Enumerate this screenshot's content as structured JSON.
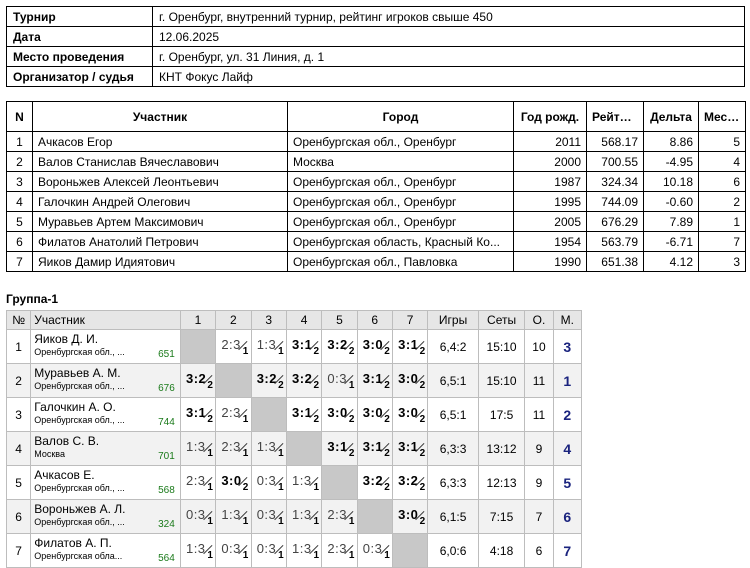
{
  "info": [
    {
      "key": "Турнир",
      "value": "г. Оренбург, внутренний турнир, рейтинг игроков свыше 450"
    },
    {
      "key": "Дата",
      "value": "12.06.2025"
    },
    {
      "key": "Место проведения",
      "value": "г. Оренбург, ул. 31 Линия, д. 1"
    },
    {
      "key": "Организатор / судья",
      "value": "КНТ Фокус Лайф"
    }
  ],
  "players_table": {
    "headers": [
      "N",
      "Участник",
      "Город",
      "Год рожд.",
      "Рейтинг",
      "Дельта",
      "Место"
    ],
    "rows": [
      {
        "n": "1",
        "name": "Ачкасов Егор",
        "city": "Оренбургская обл., Оренбург",
        "year": "2011",
        "rating": "568.17",
        "delta": "8.86",
        "place": "5"
      },
      {
        "n": "2",
        "name": "Валов Станислав Вячеславович",
        "city": "Москва",
        "year": "2000",
        "rating": "700.55",
        "delta": "-4.95",
        "place": "4"
      },
      {
        "n": "3",
        "name": "Вороньжев Алексей Леонтьевич",
        "city": "Оренбургская обл., Оренбург",
        "year": "1987",
        "rating": "324.34",
        "delta": "10.18",
        "place": "6"
      },
      {
        "n": "4",
        "name": "Галочкин Андрей Олегович",
        "city": "Оренбургская обл., Оренбург",
        "year": "1995",
        "rating": "744.09",
        "delta": "-0.60",
        "place": "2"
      },
      {
        "n": "5",
        "name": "Муравьев Артем Максимович",
        "city": "Оренбургская обл., Оренбург",
        "year": "2005",
        "rating": "676.29",
        "delta": "7.89",
        "place": "1"
      },
      {
        "n": "6",
        "name": "Филатов Анатолий Петрович",
        "city": "Оренбургская область, Красный Ко...",
        "year": "1954",
        "rating": "563.79",
        "delta": "-6.71",
        "place": "7"
      },
      {
        "n": "7",
        "name": "Яиков Дамир Идиятович",
        "city": "Оренбургская обл., Павловка",
        "year": "1990",
        "rating": "651.38",
        "delta": "4.12",
        "place": "3"
      }
    ]
  },
  "group": {
    "title": "Группа-1",
    "headers": {
      "n": "№",
      "name": "Участник",
      "cols": [
        "1",
        "2",
        "3",
        "4",
        "5",
        "6",
        "7"
      ],
      "games": "Игры",
      "sets": "Сеты",
      "points": "О.",
      "place": "М."
    },
    "rows": [
      {
        "n": "1",
        "name": "Яиков Д. И.",
        "city": "Оренбургская обл., ...",
        "rating": "651",
        "results": [
          null,
          {
            "s": "2:3",
            "r": "1"
          },
          {
            "s": "1:3",
            "r": "1"
          },
          {
            "s": "3:1",
            "r": "2"
          },
          {
            "s": "3:2",
            "r": "2"
          },
          {
            "s": "3:0",
            "r": "2"
          },
          {
            "s": "3:1",
            "r": "2"
          }
        ],
        "games": "6,4:2",
        "sets": "15:10",
        "points": "10",
        "place": "3"
      },
      {
        "n": "2",
        "name": "Муравьев А. М.",
        "city": "Оренбургская обл., ...",
        "rating": "676",
        "results": [
          {
            "s": "3:2",
            "r": "2"
          },
          null,
          {
            "s": "3:2",
            "r": "2"
          },
          {
            "s": "3:2",
            "r": "2"
          },
          {
            "s": "0:3",
            "r": "1"
          },
          {
            "s": "3:1",
            "r": "2"
          },
          {
            "s": "3:0",
            "r": "2"
          }
        ],
        "games": "6,5:1",
        "sets": "15:10",
        "points": "11",
        "place": "1"
      },
      {
        "n": "3",
        "name": "Галочкин А. О.",
        "city": "Оренбургская обл., ...",
        "rating": "744",
        "results": [
          {
            "s": "3:1",
            "r": "2"
          },
          {
            "s": "2:3",
            "r": "1"
          },
          null,
          {
            "s": "3:1",
            "r": "2"
          },
          {
            "s": "3:0",
            "r": "2"
          },
          {
            "s": "3:0",
            "r": "2"
          },
          {
            "s": "3:0",
            "r": "2"
          }
        ],
        "games": "6,5:1",
        "sets": "17:5",
        "points": "11",
        "place": "2"
      },
      {
        "n": "4",
        "name": "Валов С. В.",
        "city": "Москва",
        "rating": "701",
        "results": [
          {
            "s": "1:3",
            "r": "1"
          },
          {
            "s": "2:3",
            "r": "1"
          },
          {
            "s": "1:3",
            "r": "1"
          },
          null,
          {
            "s": "3:1",
            "r": "2"
          },
          {
            "s": "3:1",
            "r": "2"
          },
          {
            "s": "3:1",
            "r": "2"
          }
        ],
        "games": "6,3:3",
        "sets": "13:12",
        "points": "9",
        "place": "4"
      },
      {
        "n": "5",
        "name": "Ачкасов Е.",
        "city": "Оренбургская обл., ...",
        "rating": "568",
        "results": [
          {
            "s": "2:3",
            "r": "1"
          },
          {
            "s": "3:0",
            "r": "2"
          },
          {
            "s": "0:3",
            "r": "1"
          },
          {
            "s": "1:3",
            "r": "1"
          },
          null,
          {
            "s": "3:2",
            "r": "2"
          },
          {
            "s": "3:2",
            "r": "2"
          }
        ],
        "games": "6,3:3",
        "sets": "12:13",
        "points": "9",
        "place": "5"
      },
      {
        "n": "6",
        "name": "Вороньжев А. Л.",
        "city": "Оренбургская обл., ...",
        "rating": "324",
        "results": [
          {
            "s": "0:3",
            "r": "1"
          },
          {
            "s": "1:3",
            "r": "1"
          },
          {
            "s": "0:3",
            "r": "1"
          },
          {
            "s": "1:3",
            "r": "1"
          },
          {
            "s": "2:3",
            "r": "1"
          },
          null,
          {
            "s": "3:0",
            "r": "2"
          }
        ],
        "games": "6,1:5",
        "sets": "7:15",
        "points": "7",
        "place": "6"
      },
      {
        "n": "7",
        "name": "Филатов А. П.",
        "city": "Оренбургская обла...",
        "rating": "564",
        "results": [
          {
            "s": "1:3",
            "r": "1"
          },
          {
            "s": "0:3",
            "r": "1"
          },
          {
            "s": "0:3",
            "r": "1"
          },
          {
            "s": "1:3",
            "r": "1"
          },
          {
            "s": "2:3",
            "r": "1"
          },
          {
            "s": "0:3",
            "r": "1"
          },
          null
        ],
        "games": "6,0:6",
        "sets": "4:18",
        "points": "6",
        "place": "7"
      }
    ]
  }
}
